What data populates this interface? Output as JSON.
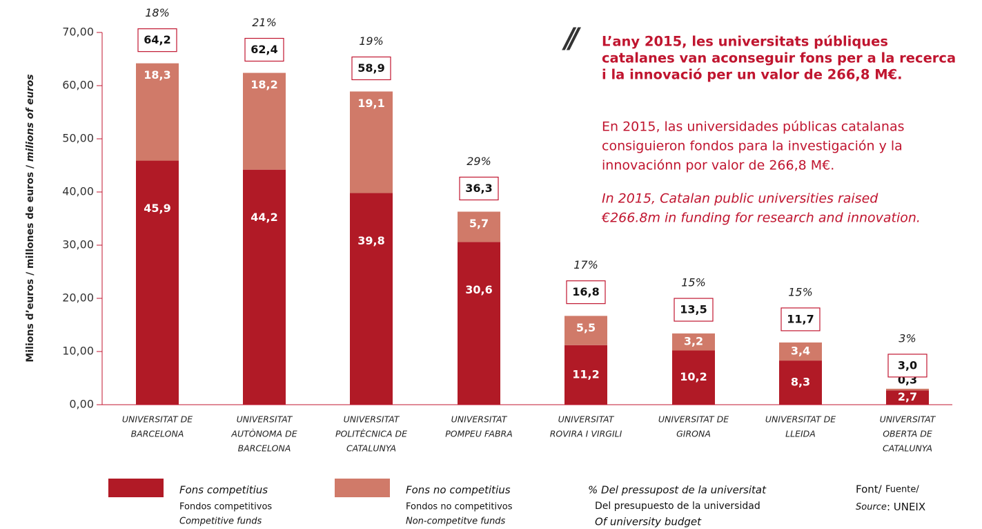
{
  "chart_data": {
    "type": "stacked_bar",
    "y_label": [
      "Milions d’euros / millones de euros / ",
      "milions of euros"
    ],
    "categories": [
      [
        "UNIVERSITAT DE",
        "BARCELONA"
      ],
      [
        "UNIVERSITAT",
        "AUTÒNOMA DE",
        "BARCELONA"
      ],
      [
        "UNIVERSITAT",
        "POLITÈCNICA DE",
        "CATALUNYA"
      ],
      [
        "UNIVERSITAT",
        "POMPEU FABRA"
      ],
      [
        "UNIVERSITAT",
        "ROVIRA I VIRGILI"
      ],
      [
        "UNIVERSITAT DE",
        "GIRONA"
      ],
      [
        "UNIVERSITAT DE",
        "LLEIDA"
      ],
      [
        "UNIVERSITAT",
        "OBERTA DE",
        "CATALUNYA"
      ]
    ],
    "series": [
      {
        "name": "Fons competitius",
        "name_es": "Fondos competitivos",
        "name_en": "Competitive funds",
        "color": "#b11a26",
        "values": [
          45.9,
          44.2,
          39.8,
          30.6,
          11.2,
          10.2,
          8.3,
          2.7
        ],
        "value_labels": [
          "45,9",
          "44,2",
          "39,8",
          "30,6",
          "11,2",
          "10,2",
          "8,3",
          "2,7"
        ]
      },
      {
        "name": "Fons no competitius",
        "name_es": "Fondos no competitivos",
        "name_en": "Non-competitve funds",
        "color": "#d07a69",
        "values": [
          18.3,
          18.2,
          19.1,
          5.7,
          5.5,
          3.2,
          3.4,
          0.3
        ],
        "value_labels": [
          "18,3",
          "18,2",
          "19,1",
          "5,7",
          "5,5",
          "3,2",
          "3,4",
          "0,3"
        ]
      }
    ],
    "totals": [
      64.2,
      62.4,
      58.9,
      36.3,
      16.8,
      13.5,
      11.7,
      3.0
    ],
    "total_labels": [
      "64,2",
      "62,4",
      "58,9",
      "36,3",
      "16,8",
      "13,5",
      "11,7",
      "3,0"
    ],
    "budget_share": [
      18,
      21,
      19,
      29,
      17,
      15,
      15,
      3
    ],
    "budget_share_labels": [
      "18%",
      "21%",
      "19%",
      "29%",
      "17%",
      "15%",
      "15%",
      "3%"
    ],
    "budget_legend": [
      "% Del pressupost de la universitat",
      "Del presupuesto de la universidad",
      "Of university budget"
    ],
    "ylim": [
      0,
      70
    ],
    "yticks": [
      {
        "value": 0,
        "label": "0,00"
      },
      {
        "value": 10,
        "label": "10,00"
      },
      {
        "value": 20,
        "label": "20,00"
      },
      {
        "value": 30,
        "label": "30,00"
      },
      {
        "value": 40,
        "label": "40,00"
      },
      {
        "value": 50,
        "label": "50,00"
      },
      {
        "value": 60,
        "label": "60,00"
      },
      {
        "value": 70,
        "label": "70,00"
      }
    ],
    "annotation": {
      "mark": "//",
      "heading": [
        "L’any 2015, les universitats públiques",
        "catalanes van aconseguir fons per a la recerca",
        "i la innovació per un valor de 266,8 M€."
      ],
      "spanish": [
        "En 2015, las universidades públicas catalanas",
        "consiguieron fondos para la investigación y la",
        "innovaciónn por valor de 266,8 M€."
      ],
      "english": [
        "In 2015, Catalan public universities raised",
        "€266.8m in funding for research and innovation."
      ]
    },
    "source": [
      "Font/",
      "Fuente/",
      "Source",
      ": UNEIX"
    ]
  }
}
